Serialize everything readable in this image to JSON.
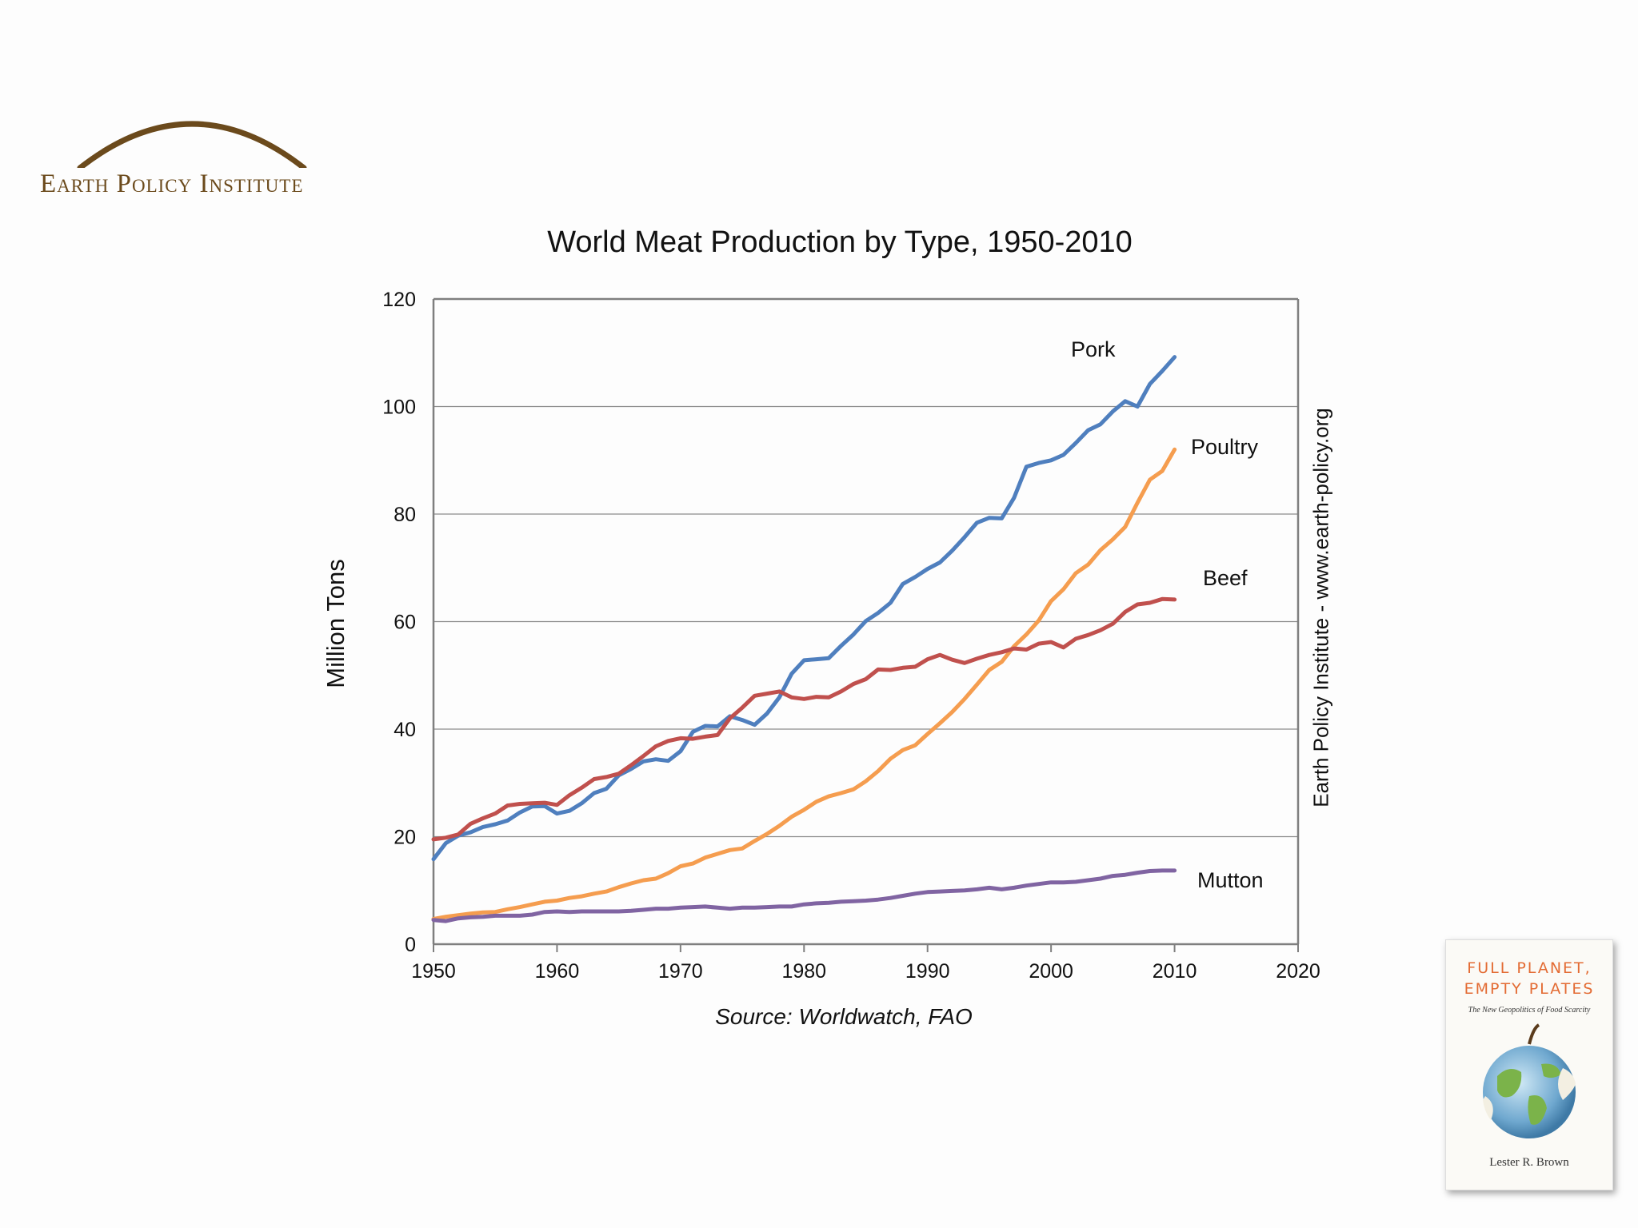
{
  "logo": {
    "text": "Earth Policy Institute",
    "arc_color": "#6b4a1c"
  },
  "book": {
    "title": "FULL PLANET,\nEMPTY PLATES",
    "subtitle": "The New Geopolitics of Food Scarcity",
    "author": "Lester R. Brown",
    "icon": "apple-globe-icon"
  },
  "side_label": "Earth Policy Institute - www.earth-policy.org",
  "source": "Source: Worldwatch, FAO",
  "chart_data": {
    "type": "line",
    "title": "World Meat Production by Type, 1950-2010",
    "xlabel": "",
    "ylabel": "Million Tons",
    "xlim": [
      1950,
      2020
    ],
    "ylim": [
      0,
      120
    ],
    "x_ticks": [
      "1950",
      "1960",
      "1970",
      "1980",
      "1990",
      "2000",
      "2010",
      "2020"
    ],
    "y_ticks": [
      "0",
      "20",
      "40",
      "60",
      "80",
      "100",
      "120"
    ],
    "grid": "horizontal",
    "x": [
      1950,
      1951,
      1952,
      1953,
      1954,
      1955,
      1956,
      1957,
      1958,
      1959,
      1960,
      1961,
      1962,
      1963,
      1964,
      1965,
      1966,
      1967,
      1968,
      1969,
      1970,
      1971,
      1972,
      1973,
      1974,
      1975,
      1976,
      1977,
      1978,
      1979,
      1980,
      1981,
      1982,
      1983,
      1984,
      1985,
      1986,
      1987,
      1988,
      1989,
      1990,
      1991,
      1992,
      1993,
      1994,
      1995,
      1996,
      1997,
      1998,
      1999,
      2000,
      2001,
      2002,
      2003,
      2004,
      2005,
      2006,
      2007,
      2008,
      2009,
      2010
    ],
    "series": [
      {
        "name": "Pork",
        "color": "#4f7fbe",
        "values": [
          15.8,
          18.8,
          20.2,
          20.8,
          21.8,
          22.3,
          23.0,
          24.5,
          25.6,
          25.7,
          24.3,
          24.8,
          26.2,
          28.1,
          28.9,
          31.4,
          32.6,
          34.0,
          34.4,
          34.1,
          35.9,
          39.5,
          40.6,
          40.5,
          42.4,
          41.7,
          40.8,
          42.9,
          45.9,
          50.3,
          52.8,
          53.0,
          53.2,
          55.5,
          57.6,
          60.1,
          61.6,
          63.5,
          67.0,
          68.3,
          69.8,
          71.0,
          73.2,
          75.7,
          78.4,
          79.3,
          79.2,
          83.0,
          88.8,
          89.5,
          90.0,
          91.0,
          93.2,
          95.6,
          96.7,
          99.1,
          101.0,
          100.0,
          104.2,
          106.6,
          109.2
        ]
      },
      {
        "name": "Poultry",
        "color": "#f59d4f",
        "values": [
          4.7,
          5.1,
          5.4,
          5.7,
          5.9,
          6.0,
          6.5,
          6.9,
          7.4,
          7.9,
          8.1,
          8.6,
          8.9,
          9.4,
          9.8,
          10.6,
          11.3,
          11.9,
          12.2,
          13.2,
          14.5,
          15.0,
          16.1,
          16.8,
          17.5,
          17.8,
          19.2,
          20.5,
          22.0,
          23.7,
          25.0,
          26.5,
          27.5,
          28.1,
          28.8,
          30.3,
          32.2,
          34.5,
          36.1,
          37.0,
          39.1,
          41.1,
          43.2,
          45.6,
          48.3,
          51.0,
          52.5,
          55.4,
          57.6,
          60.2,
          63.8,
          66.0,
          69.0,
          70.6,
          73.3,
          75.3,
          77.6,
          82.1,
          86.4,
          88.0,
          92.0
        ]
      },
      {
        "name": "Beef",
        "color": "#c0504d",
        "values": [
          19.5,
          19.8,
          20.4,
          22.4,
          23.4,
          24.3,
          25.8,
          26.1,
          26.2,
          26.3,
          25.9,
          27.7,
          29.1,
          30.7,
          31.1,
          31.7,
          33.3,
          35.0,
          36.8,
          37.8,
          38.3,
          38.2,
          38.6,
          38.9,
          42.0,
          44.0,
          46.2,
          46.6,
          47.0,
          45.9,
          45.6,
          46.0,
          45.9,
          47.0,
          48.4,
          49.3,
          51.1,
          51.0,
          51.4,
          51.6,
          53.0,
          53.8,
          52.9,
          52.3,
          53.1,
          53.8,
          54.3,
          55.0,
          54.8,
          55.9,
          56.2,
          55.2,
          56.8,
          57.5,
          58.4,
          59.6,
          61.8,
          63.2,
          63.5,
          64.2,
          64.1
        ]
      },
      {
        "name": "Mutton",
        "color": "#8064a2",
        "values": [
          4.5,
          4.3,
          4.8,
          5.0,
          5.1,
          5.3,
          5.3,
          5.3,
          5.5,
          6.0,
          6.1,
          6.0,
          6.1,
          6.1,
          6.1,
          6.1,
          6.2,
          6.4,
          6.6,
          6.6,
          6.8,
          6.9,
          7.0,
          6.8,
          6.6,
          6.8,
          6.8,
          6.9,
          7.0,
          7.0,
          7.4,
          7.6,
          7.7,
          7.9,
          8.0,
          8.1,
          8.3,
          8.6,
          9.0,
          9.4,
          9.7,
          9.8,
          9.9,
          10.0,
          10.2,
          10.5,
          10.2,
          10.5,
          10.9,
          11.2,
          11.5,
          11.5,
          11.6,
          11.9,
          12.2,
          12.7,
          12.9,
          13.3,
          13.6,
          13.7,
          13.7
        ]
      }
    ]
  }
}
